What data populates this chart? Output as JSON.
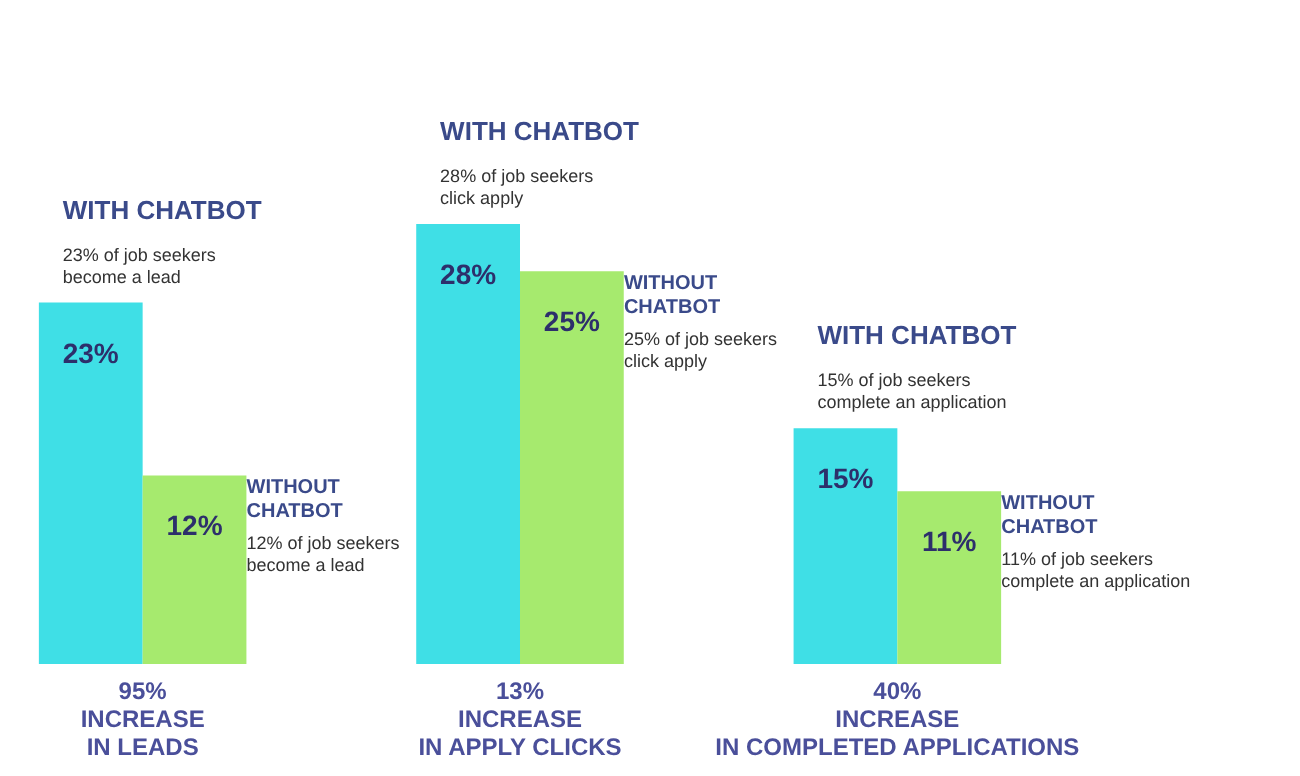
{
  "chart_data": {
    "type": "bar",
    "categories": [
      "95% INCREASE IN LEADS",
      "13% INCREASE IN APPLY CLICKS",
      "40% INCREASE IN COMPLETED APPLICATIONS"
    ],
    "series": [
      {
        "name": "WITH CHATBOT",
        "color": "#3fdfe6",
        "values": [
          23,
          28,
          15
        ],
        "value_labels": [
          "23%",
          "28%",
          "15%"
        ]
      },
      {
        "name": "WITHOUT CHATBOT",
        "color": "#a6ea6e",
        "values": [
          12,
          25,
          11
        ],
        "value_labels": [
          "12%",
          "25%",
          "11%"
        ]
      }
    ],
    "grid": false,
    "annotations": [
      "23% of job seekers become a lead",
      "12% of job seekers become a lead",
      "28% of job seekers click apply",
      "25% of job seekers click apply",
      "15% of job seekers complete an application",
      "11% of job seekers complete an application"
    ]
  }
}
